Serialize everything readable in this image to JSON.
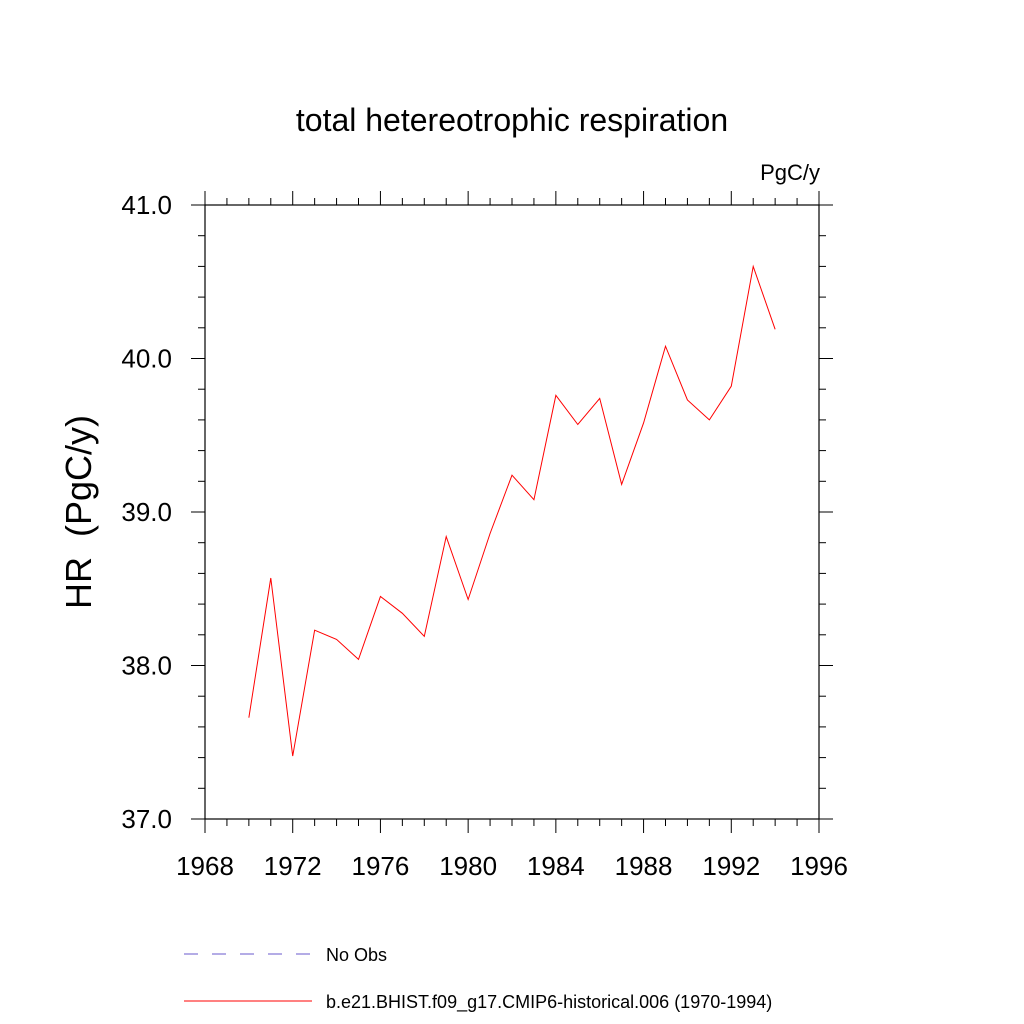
{
  "chart_data": {
    "type": "line",
    "title": "total hetereotrophic respiration",
    "units_label": "PgC/y",
    "ylabel": "HR  (PgC/y)",
    "xlabel": "",
    "xlim": [
      1968,
      1996
    ],
    "ylim": [
      37.0,
      41.0
    ],
    "x_ticks": [
      1968,
      1972,
      1976,
      1980,
      1984,
      1988,
      1992,
      1996
    ],
    "x_tick_labels": [
      "1968",
      "1972",
      "1976",
      "1980",
      "1984",
      "1988",
      "1992",
      "1996"
    ],
    "y_ticks": [
      37.0,
      38.0,
      39.0,
      40.0,
      41.0
    ],
    "y_tick_labels": [
      "37.0",
      "38.0",
      "39.0",
      "40.0",
      "41.0"
    ],
    "grid": false,
    "legend_position": "bottom",
    "series": [
      {
        "name": "b.e21.BHIST.f09_g17.CMIP6-historical.006 (1970-1994)",
        "color": "#ff0000",
        "x": [
          1970,
          1971,
          1972,
          1973,
          1974,
          1975,
          1976,
          1977,
          1978,
          1979,
          1980,
          1981,
          1982,
          1983,
          1984,
          1985,
          1986,
          1987,
          1988,
          1989,
          1990,
          1991,
          1992,
          1993,
          1994
        ],
        "values": [
          37.66,
          38.57,
          37.41,
          38.23,
          38.17,
          38.04,
          38.45,
          38.34,
          38.19,
          38.84,
          38.43,
          38.86,
          39.24,
          39.08,
          39.76,
          39.57,
          39.74,
          39.18,
          39.58,
          40.08,
          39.73,
          39.6,
          39.82,
          40.6,
          40.19
        ]
      }
    ],
    "legend": [
      {
        "label": "No Obs",
        "color": "#6a5acd",
        "style": "dashed"
      },
      {
        "label": "b.e21.BHIST.f09_g17.CMIP6-historical.006 (1970-1994)",
        "color": "#ff0000",
        "style": "solid"
      }
    ]
  }
}
